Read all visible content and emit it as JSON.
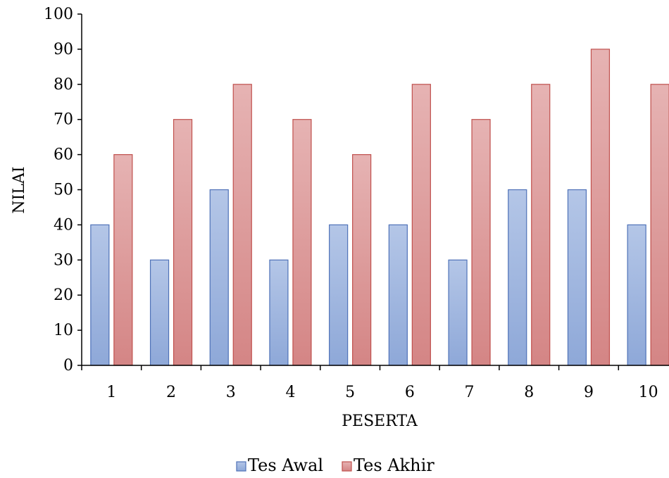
{
  "chart_data": {
    "type": "bar",
    "title": "",
    "xlabel": "PESERTA",
    "ylabel": "NILAI",
    "categories": [
      "1",
      "2",
      "3",
      "4",
      "5",
      "6",
      "7",
      "8",
      "9",
      "10"
    ],
    "ylim": [
      0,
      100
    ],
    "yticks": [
      "0",
      "10",
      "20",
      "30",
      "40",
      "50",
      "60",
      "70",
      "80",
      "90",
      "100"
    ],
    "grid": false,
    "legend_position": "bottom",
    "series": [
      {
        "name": "Tes Awal",
        "color": "#8EA8D8",
        "values": [
          40,
          30,
          50,
          30,
          40,
          40,
          30,
          50,
          50,
          40
        ]
      },
      {
        "name": "Tes Akhir",
        "color": "#D88E8E",
        "values": [
          60,
          70,
          80,
          70,
          60,
          80,
          70,
          80,
          90,
          80
        ]
      }
    ]
  }
}
